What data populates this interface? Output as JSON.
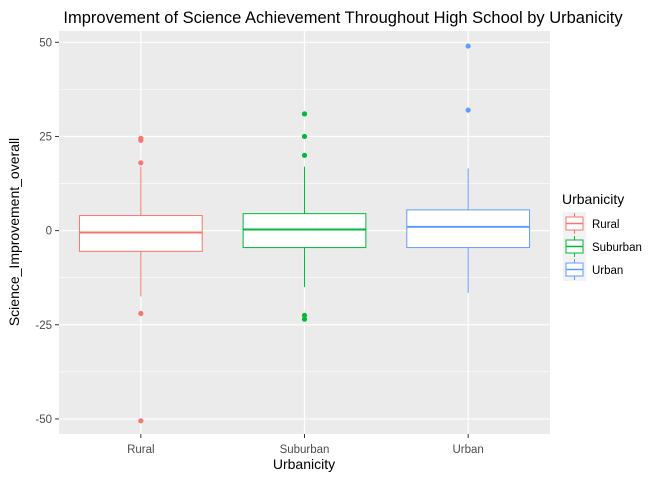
{
  "chart_data": {
    "type": "boxplot",
    "title": "Improvement of Science Achievement Throughout High School by Urbanicity",
    "xlabel": "Urbanicity",
    "ylabel": "Science_Improvement_overall",
    "ylim": [
      -54,
      53
    ],
    "y_ticks": [
      -50,
      -25,
      0,
      25,
      50
    ],
    "categories": [
      "Rural",
      "Suburban",
      "Urban"
    ],
    "colors": {
      "Rural": "#F8766D",
      "Suburban": "#00BA38",
      "Urban": "#619CFF"
    },
    "boxes": [
      {
        "name": "Rural",
        "whisker_low": -17.5,
        "q1": -5.5,
        "median": -0.5,
        "q3": 4.0,
        "whisker_high": 17.0,
        "outliers": [
          24.5,
          24.0,
          18.0,
          -22.0,
          -50.5
        ]
      },
      {
        "name": "Suburban",
        "whisker_low": -15.0,
        "q1": -4.5,
        "median": 0.3,
        "q3": 4.5,
        "whisker_high": 17.0,
        "outliers": [
          31.0,
          25.0,
          20.0,
          -22.5,
          -23.5
        ]
      },
      {
        "name": "Urban",
        "whisker_low": -16.5,
        "q1": -4.5,
        "median": 1.0,
        "q3": 5.5,
        "whisker_high": 16.5,
        "outliers": [
          49.0,
          32.0
        ]
      }
    ],
    "grid": true,
    "legend": {
      "title": "Urbanicity",
      "placement": "right",
      "entries": [
        "Rural",
        "Suburban",
        "Urban"
      ]
    }
  }
}
